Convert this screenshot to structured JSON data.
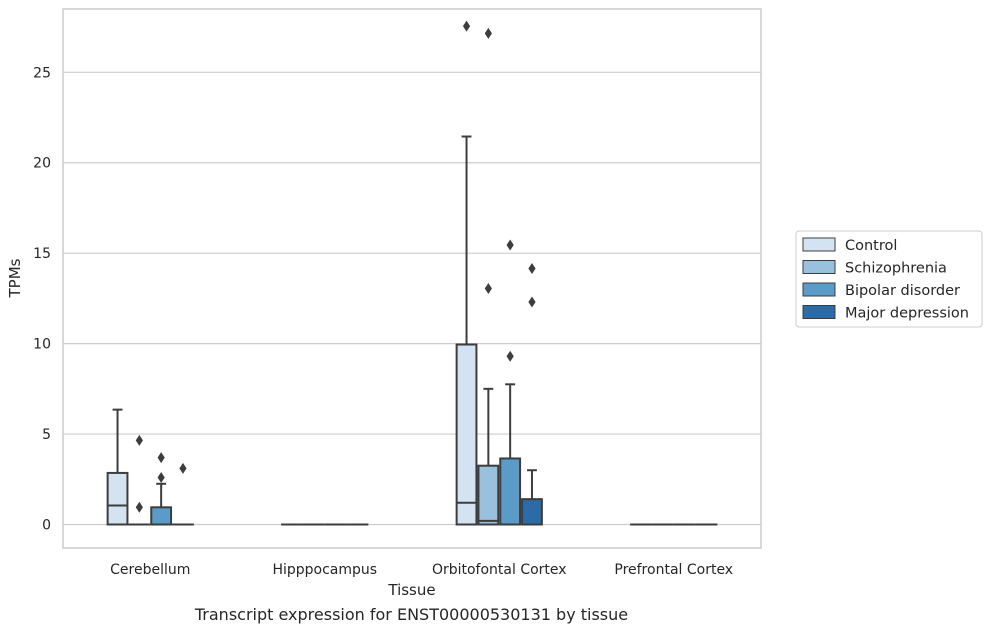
{
  "caption": "Transcript expression for ENST00000530131 by tissue",
  "chart_data": {
    "type": "box",
    "xlabel": "Tissue",
    "ylabel": "TPMs",
    "ylim": [
      -1.3,
      28.5
    ],
    "yticks": [
      0,
      5,
      10,
      15,
      20,
      25
    ],
    "grid": "horizontal",
    "legend_position": "right",
    "categories": [
      "Cerebellum",
      "Hipppocampus",
      "Orbitofontal Cortex",
      "Prefrontal Cortex"
    ],
    "series": [
      {
        "name": "Control",
        "color": "#d4e3f2",
        "boxes": [
          {
            "q1": 0,
            "median": 1.05,
            "q3": 2.85,
            "whisker_low": 0,
            "whisker_high": 6.35,
            "outliers": []
          },
          {
            "q1": 0,
            "median": 0,
            "q3": 0,
            "whisker_low": 0,
            "whisker_high": 0,
            "outliers": []
          },
          {
            "q1": 0,
            "median": 1.2,
            "q3": 9.95,
            "whisker_low": 0,
            "whisker_high": 21.45,
            "outliers": [
              27.55
            ]
          },
          {
            "q1": 0,
            "median": 0,
            "q3": 0,
            "whisker_low": 0,
            "whisker_high": 0,
            "outliers": []
          }
        ]
      },
      {
        "name": "Schizophrenia",
        "color": "#99c1dd",
        "boxes": [
          {
            "q1": 0,
            "median": 0,
            "q3": 0,
            "whisker_low": 0,
            "whisker_high": 0,
            "outliers": [
              4.65,
              0.95
            ]
          },
          {
            "q1": 0,
            "median": 0,
            "q3": 0,
            "whisker_low": 0,
            "whisker_high": 0,
            "outliers": []
          },
          {
            "q1": 0,
            "median": 0.2,
            "q3": 3.25,
            "whisker_low": 0,
            "whisker_high": 7.5,
            "outliers": [
              27.15,
              13.05
            ]
          },
          {
            "q1": 0,
            "median": 0,
            "q3": 0,
            "whisker_low": 0,
            "whisker_high": 0,
            "outliers": []
          }
        ]
      },
      {
        "name": "Bipolar disorder",
        "color": "#5a9bc8",
        "boxes": [
          {
            "q1": 0,
            "median": 0,
            "q3": 0.95,
            "whisker_low": 0,
            "whisker_high": 2.25,
            "outliers": [
              3.7,
              2.6
            ]
          },
          {
            "q1": 0,
            "median": 0,
            "q3": 0,
            "whisker_low": 0,
            "whisker_high": 0,
            "outliers": []
          },
          {
            "q1": 0,
            "median": 0,
            "q3": 3.65,
            "whisker_low": 0,
            "whisker_high": 7.75,
            "outliers": [
              15.45,
              9.3
            ]
          },
          {
            "q1": 0,
            "median": 0,
            "q3": 0,
            "whisker_low": 0,
            "whisker_high": 0,
            "outliers": []
          }
        ]
      },
      {
        "name": "Major depression",
        "color": "#2b6ca8",
        "boxes": [
          {
            "q1": 0,
            "median": 0,
            "q3": 0,
            "whisker_low": 0,
            "whisker_high": 0,
            "outliers": [
              3.1
            ]
          },
          {
            "q1": 0,
            "median": 0,
            "q3": 0,
            "whisker_low": 0,
            "whisker_high": 0,
            "outliers": []
          },
          {
            "q1": 0,
            "median": 0,
            "q3": 1.4,
            "whisker_low": 0,
            "whisker_high": 3.0,
            "outliers": [
              14.15,
              12.3
            ]
          },
          {
            "q1": 0,
            "median": 0,
            "q3": 0,
            "whisker_low": 0,
            "whisker_high": 0,
            "outliers": []
          }
        ]
      }
    ]
  }
}
